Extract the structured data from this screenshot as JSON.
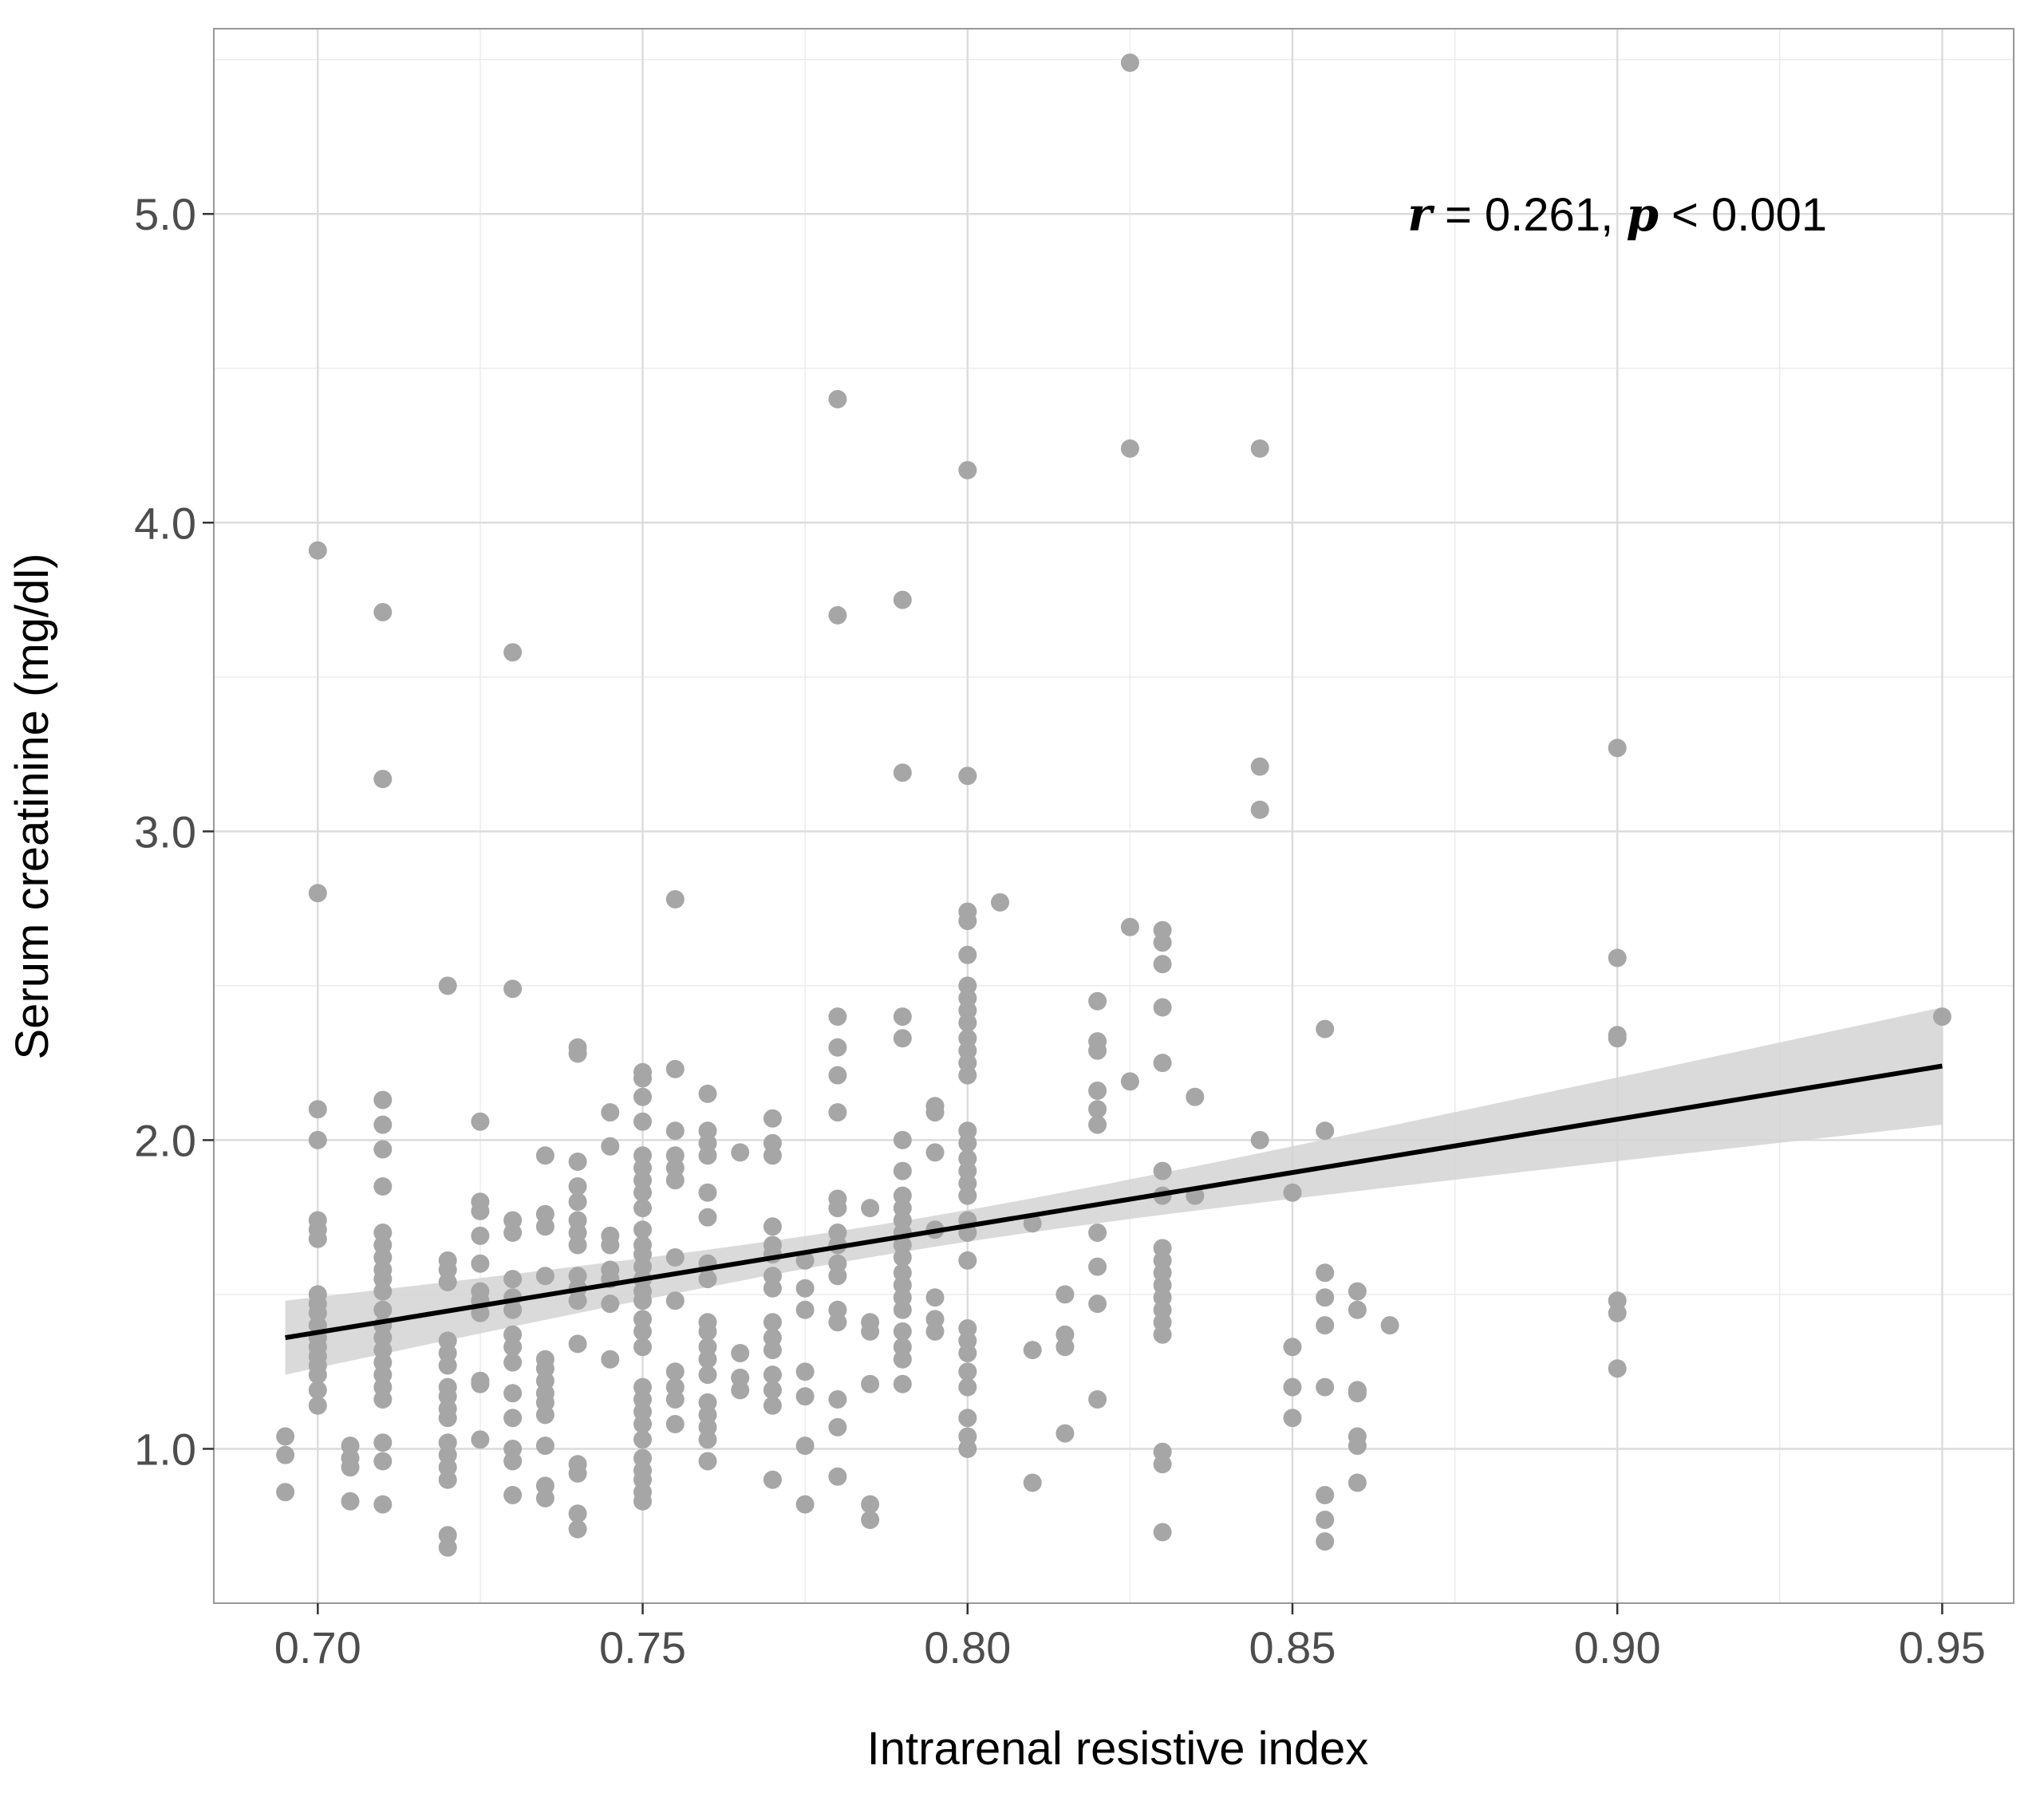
{
  "colors": {
    "points": "#a6a6a6",
    "fit_line": "#000000",
    "confidence_band": "#d3d3d3",
    "grid_major": "#dcdcdc",
    "grid_minor": "#ececec",
    "panel_border": "#999999"
  },
  "chart_data": {
    "type": "scatter",
    "title": "",
    "xlabel": "Intrarenal resistive index",
    "ylabel": "Serum creatinine (mg/dl)",
    "xlim": [
      0.684,
      0.961
    ],
    "ylim": [
      0.5,
      5.6
    ],
    "x_ticks": [
      0.7,
      0.75,
      0.8,
      0.85,
      0.9,
      0.95
    ],
    "x_tick_labels": [
      "0.70",
      "0.75",
      "0.80",
      "0.85",
      "0.90",
      "0.95"
    ],
    "y_ticks": [
      1.0,
      2.0,
      3.0,
      4.0,
      5.0
    ],
    "y_tick_labels": [
      "1.0",
      "2.0",
      "3.0",
      "4.0",
      "5.0"
    ],
    "grid": true,
    "annotation": {
      "r_symbol": "r",
      "r_text": " = 0.261, ",
      "p_symbol": "p",
      "p_text": " < 0.001",
      "x": 0.9,
      "y": 5.0
    },
    "regression": {
      "x": [
        0.695,
        0.95
      ],
      "y": [
        1.36,
        2.24
      ],
      "ci_lower": [
        1.26,
        2.02
      ],
      "ci_upper": [
        1.46,
        2.46
      ],
      "ci_mid_x": 0.79,
      "ci_mid_half_width": 0.05
    },
    "points": [
      [
        0.695,
        1.04
      ],
      [
        0.695,
        0.98
      ],
      [
        0.695,
        0.86
      ],
      [
        0.7,
        3.91
      ],
      [
        0.7,
        2.8
      ],
      [
        0.7,
        2.1
      ],
      [
        0.7,
        2.0
      ],
      [
        0.7,
        1.74
      ],
      [
        0.7,
        1.71
      ],
      [
        0.7,
        1.68
      ],
      [
        0.7,
        1.5
      ],
      [
        0.7,
        1.47
      ],
      [
        0.7,
        1.44
      ],
      [
        0.7,
        1.4
      ],
      [
        0.7,
        1.36
      ],
      [
        0.7,
        1.33
      ],
      [
        0.7,
        1.3
      ],
      [
        0.7,
        1.27
      ],
      [
        0.7,
        1.24
      ],
      [
        0.7,
        1.19
      ],
      [
        0.7,
        1.14
      ],
      [
        0.705,
        1.01
      ],
      [
        0.705,
        0.97
      ],
      [
        0.705,
        0.94
      ],
      [
        0.705,
        0.83
      ],
      [
        0.71,
        3.71
      ],
      [
        0.71,
        3.17
      ],
      [
        0.71,
        2.13
      ],
      [
        0.71,
        2.05
      ],
      [
        0.71,
        1.97
      ],
      [
        0.71,
        1.85
      ],
      [
        0.71,
        1.7
      ],
      [
        0.71,
        1.66
      ],
      [
        0.71,
        1.62
      ],
      [
        0.71,
        1.58
      ],
      [
        0.71,
        1.55
      ],
      [
        0.71,
        1.51
      ],
      [
        0.71,
        1.45
      ],
      [
        0.71,
        1.4
      ],
      [
        0.71,
        1.36
      ],
      [
        0.71,
        1.32
      ],
      [
        0.71,
        1.28
      ],
      [
        0.71,
        1.24
      ],
      [
        0.71,
        1.2
      ],
      [
        0.71,
        1.16
      ],
      [
        0.71,
        1.02
      ],
      [
        0.71,
        0.96
      ],
      [
        0.71,
        0.82
      ],
      [
        0.72,
        2.5
      ],
      [
        0.72,
        1.61
      ],
      [
        0.72,
        1.58
      ],
      [
        0.72,
        1.54
      ],
      [
        0.72,
        1.35
      ],
      [
        0.72,
        1.31
      ],
      [
        0.72,
        1.27
      ],
      [
        0.72,
        1.2
      ],
      [
        0.72,
        1.17
      ],
      [
        0.72,
        1.13
      ],
      [
        0.72,
        1.1
      ],
      [
        0.72,
        1.02
      ],
      [
        0.72,
        0.98
      ],
      [
        0.72,
        0.94
      ],
      [
        0.72,
        0.9
      ],
      [
        0.72,
        0.72
      ],
      [
        0.72,
        0.68
      ],
      [
        0.725,
        2.06
      ],
      [
        0.725,
        1.8
      ],
      [
        0.725,
        1.77
      ],
      [
        0.725,
        1.69
      ],
      [
        0.725,
        1.6
      ],
      [
        0.725,
        1.51
      ],
      [
        0.725,
        1.48
      ],
      [
        0.725,
        1.44
      ],
      [
        0.725,
        1.22
      ],
      [
        0.725,
        1.21
      ],
      [
        0.725,
        1.03
      ],
      [
        0.73,
        3.58
      ],
      [
        0.73,
        2.49
      ],
      [
        0.73,
        1.74
      ],
      [
        0.73,
        1.7
      ],
      [
        0.73,
        1.55
      ],
      [
        0.73,
        1.49
      ],
      [
        0.73,
        1.45
      ],
      [
        0.73,
        1.37
      ],
      [
        0.73,
        1.33
      ],
      [
        0.73,
        1.28
      ],
      [
        0.73,
        1.18
      ],
      [
        0.73,
        1.1
      ],
      [
        0.73,
        1.0
      ],
      [
        0.73,
        0.96
      ],
      [
        0.73,
        0.85
      ],
      [
        0.735,
        1.95
      ],
      [
        0.735,
        1.76
      ],
      [
        0.735,
        1.72
      ],
      [
        0.735,
        1.56
      ],
      [
        0.735,
        1.29
      ],
      [
        0.735,
        1.26
      ],
      [
        0.735,
        1.22
      ],
      [
        0.735,
        1.18
      ],
      [
        0.735,
        1.15
      ],
      [
        0.735,
        1.11
      ],
      [
        0.735,
        1.01
      ],
      [
        0.735,
        0.88
      ],
      [
        0.735,
        0.84
      ],
      [
        0.74,
        2.3
      ],
      [
        0.74,
        2.28
      ],
      [
        0.74,
        1.93
      ],
      [
        0.74,
        1.85
      ],
      [
        0.74,
        1.8
      ],
      [
        0.74,
        1.74
      ],
      [
        0.74,
        1.7
      ],
      [
        0.74,
        1.66
      ],
      [
        0.74,
        1.56
      ],
      [
        0.74,
        1.52
      ],
      [
        0.74,
        1.48
      ],
      [
        0.74,
        1.34
      ],
      [
        0.74,
        0.95
      ],
      [
        0.74,
        0.92
      ],
      [
        0.74,
        0.79
      ],
      [
        0.74,
        0.74
      ],
      [
        0.745,
        2.09
      ],
      [
        0.745,
        1.98
      ],
      [
        0.745,
        1.69
      ],
      [
        0.745,
        1.66
      ],
      [
        0.745,
        1.58
      ],
      [
        0.745,
        1.55
      ],
      [
        0.745,
        1.47
      ],
      [
        0.745,
        1.29
      ],
      [
        0.75,
        2.22
      ],
      [
        0.75,
        2.2
      ],
      [
        0.75,
        2.14
      ],
      [
        0.75,
        2.06
      ],
      [
        0.75,
        1.95
      ],
      [
        0.75,
        1.91
      ],
      [
        0.75,
        1.87
      ],
      [
        0.75,
        1.83
      ],
      [
        0.75,
        1.78
      ],
      [
        0.75,
        1.71
      ],
      [
        0.75,
        1.66
      ],
      [
        0.75,
        1.63
      ],
      [
        0.75,
        1.59
      ],
      [
        0.75,
        1.55
      ],
      [
        0.75,
        1.51
      ],
      [
        0.75,
        1.48
      ],
      [
        0.75,
        1.42
      ],
      [
        0.75,
        1.38
      ],
      [
        0.75,
        1.33
      ],
      [
        0.75,
        1.2
      ],
      [
        0.75,
        1.16
      ],
      [
        0.75,
        1.12
      ],
      [
        0.75,
        1.08
      ],
      [
        0.75,
        1.03
      ],
      [
        0.75,
        0.97
      ],
      [
        0.75,
        0.93
      ],
      [
        0.75,
        0.9
      ],
      [
        0.75,
        0.86
      ],
      [
        0.75,
        0.83
      ],
      [
        0.755,
        2.78
      ],
      [
        0.755,
        2.23
      ],
      [
        0.755,
        2.03
      ],
      [
        0.755,
        1.95
      ],
      [
        0.755,
        1.91
      ],
      [
        0.755,
        1.87
      ],
      [
        0.755,
        1.62
      ],
      [
        0.755,
        1.48
      ],
      [
        0.755,
        1.25
      ],
      [
        0.755,
        1.2
      ],
      [
        0.755,
        1.16
      ],
      [
        0.755,
        1.08
      ],
      [
        0.76,
        2.15
      ],
      [
        0.76,
        2.03
      ],
      [
        0.76,
        1.99
      ],
      [
        0.76,
        1.95
      ],
      [
        0.76,
        1.83
      ],
      [
        0.76,
        1.75
      ],
      [
        0.76,
        1.6
      ],
      [
        0.76,
        1.55
      ],
      [
        0.76,
        1.41
      ],
      [
        0.76,
        1.38
      ],
      [
        0.76,
        1.33
      ],
      [
        0.76,
        1.29
      ],
      [
        0.76,
        1.24
      ],
      [
        0.76,
        1.15
      ],
      [
        0.76,
        1.11
      ],
      [
        0.76,
        1.07
      ],
      [
        0.76,
        1.03
      ],
      [
        0.76,
        0.96
      ],
      [
        0.765,
        1.96
      ],
      [
        0.765,
        1.31
      ],
      [
        0.765,
        1.23
      ],
      [
        0.765,
        1.19
      ],
      [
        0.77,
        2.07
      ],
      [
        0.77,
        1.99
      ],
      [
        0.77,
        1.95
      ],
      [
        0.77,
        1.72
      ],
      [
        0.77,
        1.66
      ],
      [
        0.77,
        1.63
      ],
      [
        0.77,
        1.56
      ],
      [
        0.77,
        1.52
      ],
      [
        0.77,
        1.41
      ],
      [
        0.77,
        1.36
      ],
      [
        0.77,
        1.32
      ],
      [
        0.77,
        1.24
      ],
      [
        0.77,
        1.19
      ],
      [
        0.77,
        1.14
      ],
      [
        0.77,
        0.9
      ],
      [
        0.775,
        1.61
      ],
      [
        0.775,
        1.52
      ],
      [
        0.775,
        1.45
      ],
      [
        0.775,
        1.25
      ],
      [
        0.775,
        1.17
      ],
      [
        0.775,
        1.01
      ],
      [
        0.775,
        0.82
      ],
      [
        0.78,
        4.4
      ],
      [
        0.78,
        3.7
      ],
      [
        0.78,
        2.4
      ],
      [
        0.78,
        2.3
      ],
      [
        0.78,
        2.21
      ],
      [
        0.78,
        2.09
      ],
      [
        0.78,
        1.81
      ],
      [
        0.78,
        1.78
      ],
      [
        0.78,
        1.7
      ],
      [
        0.78,
        1.66
      ],
      [
        0.78,
        1.6
      ],
      [
        0.78,
        1.56
      ],
      [
        0.78,
        1.45
      ],
      [
        0.78,
        1.41
      ],
      [
        0.78,
        1.16
      ],
      [
        0.78,
        1.07
      ],
      [
        0.78,
        0.91
      ],
      [
        0.785,
        1.78
      ],
      [
        0.785,
        1.41
      ],
      [
        0.785,
        1.38
      ],
      [
        0.785,
        1.21
      ],
      [
        0.785,
        0.82
      ],
      [
        0.785,
        0.77
      ],
      [
        0.79,
        3.75
      ],
      [
        0.79,
        3.19
      ],
      [
        0.79,
        2.4
      ],
      [
        0.79,
        2.33
      ],
      [
        0.79,
        2.0
      ],
      [
        0.79,
        1.9
      ],
      [
        0.79,
        1.82
      ],
      [
        0.79,
        1.78
      ],
      [
        0.79,
        1.74
      ],
      [
        0.79,
        1.7
      ],
      [
        0.79,
        1.66
      ],
      [
        0.79,
        1.62
      ],
      [
        0.79,
        1.57
      ],
      [
        0.79,
        1.53
      ],
      [
        0.79,
        1.49
      ],
      [
        0.79,
        1.45
      ],
      [
        0.79,
        1.38
      ],
      [
        0.79,
        1.33
      ],
      [
        0.79,
        1.29
      ],
      [
        0.79,
        1.21
      ],
      [
        0.795,
        2.11
      ],
      [
        0.795,
        2.09
      ],
      [
        0.795,
        1.96
      ],
      [
        0.795,
        1.71
      ],
      [
        0.795,
        1.49
      ],
      [
        0.795,
        1.42
      ],
      [
        0.795,
        1.38
      ],
      [
        0.8,
        4.17
      ],
      [
        0.8,
        3.18
      ],
      [
        0.8,
        2.74
      ],
      [
        0.8,
        2.71
      ],
      [
        0.8,
        2.6
      ],
      [
        0.8,
        2.5
      ],
      [
        0.8,
        2.46
      ],
      [
        0.8,
        2.42
      ],
      [
        0.8,
        2.38
      ],
      [
        0.8,
        2.33
      ],
      [
        0.8,
        2.29
      ],
      [
        0.8,
        2.25
      ],
      [
        0.8,
        2.21
      ],
      [
        0.8,
        2.03
      ],
      [
        0.8,
        1.99
      ],
      [
        0.8,
        1.94
      ],
      [
        0.8,
        1.9
      ],
      [
        0.8,
        1.86
      ],
      [
        0.8,
        1.82
      ],
      [
        0.8,
        1.74
      ],
      [
        0.8,
        1.7
      ],
      [
        0.8,
        1.61
      ],
      [
        0.8,
        1.39
      ],
      [
        0.8,
        1.35
      ],
      [
        0.8,
        1.31
      ],
      [
        0.8,
        1.25
      ],
      [
        0.8,
        1.2
      ],
      [
        0.8,
        1.1
      ],
      [
        0.8,
        1.04
      ],
      [
        0.8,
        1.0
      ],
      [
        0.805,
        2.77
      ],
      [
        0.81,
        1.73
      ],
      [
        0.81,
        1.32
      ],
      [
        0.81,
        0.89
      ],
      [
        0.815,
        1.5
      ],
      [
        0.815,
        1.37
      ],
      [
        0.815,
        1.33
      ],
      [
        0.815,
        1.05
      ],
      [
        0.82,
        2.45
      ],
      [
        0.82,
        2.32
      ],
      [
        0.82,
        2.29
      ],
      [
        0.82,
        2.16
      ],
      [
        0.82,
        2.1
      ],
      [
        0.82,
        2.05
      ],
      [
        0.82,
        1.7
      ],
      [
        0.82,
        1.59
      ],
      [
        0.82,
        1.47
      ],
      [
        0.82,
        1.16
      ],
      [
        0.825,
        5.49
      ],
      [
        0.825,
        4.24
      ],
      [
        0.825,
        2.69
      ],
      [
        0.825,
        2.19
      ],
      [
        0.83,
        2.68
      ],
      [
        0.83,
        2.64
      ],
      [
        0.83,
        2.57
      ],
      [
        0.83,
        2.43
      ],
      [
        0.83,
        2.25
      ],
      [
        0.83,
        1.9
      ],
      [
        0.83,
        1.82
      ],
      [
        0.83,
        1.65
      ],
      [
        0.83,
        1.61
      ],
      [
        0.83,
        1.57
      ],
      [
        0.83,
        1.53
      ],
      [
        0.83,
        1.49
      ],
      [
        0.83,
        1.45
      ],
      [
        0.83,
        1.41
      ],
      [
        0.83,
        1.37
      ],
      [
        0.83,
        0.99
      ],
      [
        0.83,
        0.95
      ],
      [
        0.83,
        0.73
      ],
      [
        0.835,
        2.14
      ],
      [
        0.835,
        1.82
      ],
      [
        0.845,
        4.24
      ],
      [
        0.845,
        3.21
      ],
      [
        0.845,
        3.07
      ],
      [
        0.845,
        2.0
      ],
      [
        0.85,
        1.83
      ],
      [
        0.85,
        1.33
      ],
      [
        0.85,
        1.2
      ],
      [
        0.85,
        1.1
      ],
      [
        0.855,
        2.36
      ],
      [
        0.855,
        2.03
      ],
      [
        0.855,
        1.57
      ],
      [
        0.855,
        1.49
      ],
      [
        0.855,
        1.4
      ],
      [
        0.855,
        1.2
      ],
      [
        0.855,
        0.85
      ],
      [
        0.855,
        0.77
      ],
      [
        0.855,
        0.7
      ],
      [
        0.86,
        1.51
      ],
      [
        0.86,
        1.45
      ],
      [
        0.86,
        1.19
      ],
      [
        0.86,
        1.18
      ],
      [
        0.86,
        1.04
      ],
      [
        0.86,
        1.01
      ],
      [
        0.86,
        0.89
      ],
      [
        0.865,
        1.4
      ],
      [
        0.9,
        3.27
      ],
      [
        0.9,
        2.59
      ],
      [
        0.9,
        2.34
      ],
      [
        0.9,
        2.33
      ],
      [
        0.9,
        1.48
      ],
      [
        0.9,
        1.44
      ],
      [
        0.9,
        1.26
      ],
      [
        0.95,
        2.4
      ]
    ]
  }
}
